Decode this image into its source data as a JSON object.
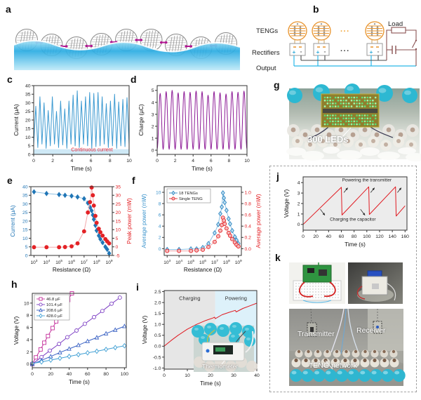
{
  "figure": {
    "panel_labels": {
      "a": "a",
      "b": "b",
      "c": "c",
      "d": "d",
      "e": "e",
      "f": "f",
      "g": "g",
      "h": "h",
      "i": "i",
      "j": "j",
      "k": "k"
    }
  },
  "panel_b": {
    "tengs_label": "TENGs",
    "rectifiers_label": "Rectifiers",
    "output_label": "Output",
    "load_label": "Load",
    "ellipsis": "...",
    "plus": "+",
    "minus": "-"
  },
  "panel_g": {
    "caption": "300 LEDs"
  },
  "panel_i": {
    "inset_caption": "Thermometer"
  },
  "panel_k": {
    "transmitter_label": "Transmitter",
    "receiver_label": "Receiver",
    "network_label": "TENG network"
  },
  "chart_data": [
    {
      "id": "c",
      "type": "line",
      "xlabel": "Time (s)",
      "ylabel": "Current (µA)",
      "xlim": [
        0,
        10
      ],
      "ylim": [
        0,
        40
      ],
      "xticks": [
        0,
        2,
        4,
        6,
        8,
        10
      ],
      "yticks": [
        0,
        5,
        10,
        15,
        20,
        25,
        30,
        35,
        40
      ],
      "line_color": "#3d9ad1",
      "band": {
        "y0": 0,
        "y1": 3,
        "color": "#cfe9f6"
      },
      "annotation": {
        "text": "Continuous current",
        "x": 6.1,
        "y": 1.9,
        "color": "#e8192c",
        "size": 7
      },
      "peaks": [
        28,
        33.5,
        30,
        25.5,
        33.5,
        25,
        31,
        26.5,
        31,
        34.5,
        37,
        31,
        33.5,
        36,
        35.5,
        36,
        33.5,
        29.5,
        31,
        35,
        30.5,
        32,
        33
      ],
      "valleys": [
        5.5,
        4,
        6,
        3.5,
        5,
        6,
        4,
        5.5,
        3.5,
        6,
        5,
        4,
        6,
        5,
        3.5,
        4.5,
        5,
        6,
        4,
        5,
        3.5,
        5,
        4.5
      ]
    },
    {
      "id": "d",
      "type": "line",
      "xlabel": "Time (s)",
      "ylabel": "Charge (µC)",
      "xlim": [
        0,
        10
      ],
      "ylim": [
        -0.35,
        5.4
      ],
      "xticks": [
        0,
        2,
        4,
        6,
        8,
        10
      ],
      "yticks": [
        0,
        1,
        2,
        3,
        4,
        5
      ],
      "line_color": "#8d1a96",
      "cycles": 15,
      "min_value": 0.07,
      "peak_values": [
        4.75,
        4.9,
        5.0,
        4.8,
        4.9,
        4.85,
        4.95,
        4.9,
        4.6,
        4.9,
        4.8,
        4.7,
        4.9,
        4.85,
        4.95
      ]
    },
    {
      "id": "e",
      "type": "dual-line",
      "xlabel": "Resistance (Ω)",
      "xscale": "log",
      "xlim_exp": [
        2.75,
        9.25
      ],
      "xticks_exp": [
        3,
        4,
        5,
        6,
        7,
        8,
        9
      ],
      "left": {
        "label": "Current (µA)",
        "color": "#2176b6",
        "lim": [
          0,
          40
        ],
        "ticks": [
          0,
          5,
          10,
          15,
          20,
          25,
          30,
          35,
          40
        ]
      },
      "right": {
        "label": "Peak power (mW)",
        "color": "#e32226",
        "lim": [
          -5,
          35
        ],
        "ticks": [
          -5,
          0,
          5,
          10,
          15,
          20,
          25,
          30,
          35
        ]
      },
      "series": [
        {
          "name": "Current",
          "axis": "left",
          "color": "#2176b6",
          "line": "#8fc1e4",
          "marker": "diamond",
          "mfill": "#2176b6",
          "data": [
            [
              1000,
              37
            ],
            [
              10000,
              36
            ],
            [
              100000,
              35.4
            ],
            [
              300000,
              35
            ],
            [
              1000000,
              34.6
            ],
            [
              3000000,
              34
            ],
            [
              10000000,
              33
            ],
            [
              20000000,
              30.5
            ],
            [
              30000000,
              28
            ],
            [
              40000000,
              26
            ],
            [
              50000000,
              23.5
            ],
            [
              60000000,
              21
            ],
            [
              80000000,
              17.5
            ],
            [
              100000000,
              14.5
            ],
            [
              150000000,
              11.5
            ],
            [
              200000000,
              9.5
            ],
            [
              300000000,
              7.5
            ],
            [
              500000000,
              5
            ],
            [
              700000000,
              3.5
            ],
            [
              1000000000,
              1.2
            ]
          ]
        },
        {
          "name": "Peak power",
          "axis": "right",
          "color": "#e32226",
          "line": "#f2a7a9",
          "marker": "circle",
          "mfill": "#e32226",
          "data": [
            [
              1000,
              -0.2
            ],
            [
              10000,
              -0.2
            ],
            [
              100000,
              -0.2
            ],
            [
              300000,
              -0.1
            ],
            [
              1000000,
              0.3
            ],
            [
              3000000,
              2
            ],
            [
              10000000,
              9
            ],
            [
              20000000,
              20
            ],
            [
              30000000,
              26
            ],
            [
              40000000,
              34.5
            ],
            [
              50000000,
              30
            ],
            [
              60000000,
              24
            ],
            [
              80000000,
              18
            ],
            [
              100000000,
              14
            ],
            [
              150000000,
              10.5
            ],
            [
              200000000,
              8.5
            ],
            [
              300000000,
              6.5
            ],
            [
              500000000,
              4.5
            ],
            [
              700000000,
              3.2
            ],
            [
              1000000000,
              2
            ]
          ]
        }
      ]
    },
    {
      "id": "f",
      "type": "dual-line",
      "xlabel": "Resistance (Ω)",
      "xscale": "log",
      "xlim_exp": [
        2.75,
        9.25
      ],
      "xticks_exp": [
        3,
        4,
        5,
        6,
        7,
        8,
        9
      ],
      "left": {
        "label": "Average power (mW)",
        "color": "#3a93cc",
        "lim": [
          -1.2,
          11
        ],
        "ticks": [
          0,
          2,
          4,
          6,
          8,
          10
        ]
      },
      "right": {
        "label": "Average power (mW)",
        "color": "#e32226",
        "lim": [
          -0.12,
          1.1
        ],
        "ticks": [
          "0.0",
          "0.2",
          "0.4",
          "0.6",
          "0.8",
          "1.0"
        ]
      },
      "series": [
        {
          "name": "18 TENGs",
          "axis": "left",
          "color": "#2e86c1",
          "line": "#8fc1e4",
          "marker": "diamond",
          "mfill": "#bfe0f2",
          "data": [
            [
              1000,
              -0.15
            ],
            [
              10000,
              -0.15
            ],
            [
              100000,
              -0.05
            ],
            [
              300000,
              -0.05
            ],
            [
              1000000,
              0.2
            ],
            [
              3000000,
              0.9
            ],
            [
              10000000,
              2.8
            ],
            [
              20000000,
              4.3
            ],
            [
              30000000,
              6.2
            ],
            [
              40000000,
              7.4
            ],
            [
              50000000,
              9.9
            ],
            [
              60000000,
              9.0
            ],
            [
              70000000,
              8.2
            ],
            [
              100000000,
              6.8
            ],
            [
              150000000,
              5.3
            ],
            [
              200000000,
              4.4
            ],
            [
              300000000,
              3.2
            ],
            [
              500000000,
              2.1
            ],
            [
              700000000,
              1.5
            ],
            [
              1000000000,
              0.9
            ]
          ]
        },
        {
          "name": "Single TENG",
          "axis": "right",
          "color": "#e32226",
          "line": "#f2a7a9",
          "marker": "circle",
          "mfill": "#f6b8ba",
          "data": [
            [
              1000,
              -0.04
            ],
            [
              10000,
              -0.04
            ],
            [
              100000,
              -0.04
            ],
            [
              300000,
              -0.03
            ],
            [
              1000000,
              -0.02
            ],
            [
              3000000,
              0.03
            ],
            [
              10000000,
              0.12
            ],
            [
              20000000,
              0.22
            ],
            [
              30000000,
              0.32
            ],
            [
              40000000,
              0.42
            ],
            [
              50000000,
              0.55
            ],
            [
              60000000,
              0.5
            ],
            [
              70000000,
              0.44
            ],
            [
              100000000,
              0.36
            ],
            [
              150000000,
              0.28
            ],
            [
              200000000,
              0.23
            ],
            [
              300000000,
              0.17
            ],
            [
              500000000,
              0.11
            ],
            [
              700000000,
              0.07
            ],
            [
              1000000000,
              0.04
            ]
          ]
        }
      ]
    },
    {
      "id": "h",
      "type": "line",
      "xlabel": "Time (s)",
      "ylabel": "Voltage (V)",
      "xlim": [
        0,
        102
      ],
      "ylim": [
        -0.6,
        11.6
      ],
      "xticks": [
        0,
        20,
        40,
        60,
        80,
        100
      ],
      "yticks": [
        0,
        2,
        4,
        6,
        8,
        10
      ],
      "series": [
        {
          "name": "46.8 µF",
          "color": "#c4309c",
          "marker": "square",
          "mfill": "#fff",
          "data": [
            [
              0,
              0
            ],
            [
              4,
              1.1
            ],
            [
              9,
              2.4
            ],
            [
              13,
              3.5
            ],
            [
              17,
              4.6
            ],
            [
              22,
              5.9
            ],
            [
              26,
              7.0
            ],
            [
              30,
              8.1
            ],
            [
              35,
              9.5
            ],
            [
              39,
              10.5
            ],
            [
              43,
              11.6
            ]
          ]
        },
        {
          "name": "101.4 µF",
          "color": "#7d3fc4",
          "marker": "circle",
          "mfill": "#fff",
          "data": [
            [
              0,
              0
            ],
            [
              10,
              1.15
            ],
            [
              19,
              2.2
            ],
            [
              29,
              3.3
            ],
            [
              38,
              4.4
            ],
            [
              48,
              5.5
            ],
            [
              57,
              6.6
            ],
            [
              67,
              7.7
            ],
            [
              76,
              8.7
            ],
            [
              86,
              9.9
            ],
            [
              95,
              10.9
            ]
          ]
        },
        {
          "name": "208.6 µF",
          "color": "#3a62c4",
          "marker": "triangle",
          "mfill": "#fff",
          "data": [
            [
              0,
              0
            ],
            [
              10,
              0.6
            ],
            [
              20,
              1.25
            ],
            [
              30,
              1.9
            ],
            [
              40,
              2.5
            ],
            [
              50,
              3.1
            ],
            [
              60,
              3.75
            ],
            [
              70,
              4.35
            ],
            [
              80,
              5.0
            ],
            [
              90,
              5.6
            ],
            [
              100,
              6.2
            ]
          ]
        },
        {
          "name": "428.0 µF",
          "color": "#41a0d4",
          "marker": "diamond",
          "mfill": "#fff",
          "data": [
            [
              0,
              0.1
            ],
            [
              10,
              0.35
            ],
            [
              20,
              0.65
            ],
            [
              30,
              0.95
            ],
            [
              40,
              1.25
            ],
            [
              50,
              1.55
            ],
            [
              60,
              1.85
            ],
            [
              70,
              2.1
            ],
            [
              80,
              2.4
            ],
            [
              90,
              2.7
            ],
            [
              100,
              3.0
            ]
          ]
        }
      ]
    },
    {
      "id": "i",
      "type": "line",
      "xlabel": "Time (s)",
      "ylabel": "Voltage (V)",
      "xlim": [
        0,
        40
      ],
      "ylim": [
        -1.05,
        2.55
      ],
      "xticks": [
        0,
        10,
        20,
        30,
        40
      ],
      "yticks": [
        "-1.0",
        "-0.5",
        "0.0",
        "0.5",
        "1.0",
        "1.5",
        "2.0",
        "2.5"
      ],
      "regions": [
        {
          "x0": 0,
          "x1": 22,
          "color": "#e6e6e6",
          "label": "Charging",
          "label_y": 2.12
        },
        {
          "x0": 22,
          "x1": 40,
          "color": "#ddf1fa",
          "label": "Powering",
          "label_y": 2.12
        }
      ],
      "series": [
        {
          "color": "#e01920",
          "data": [
            [
              0,
              0
            ],
            [
              3,
              0.26
            ],
            [
              6,
              0.5
            ],
            [
              10,
              0.78
            ],
            [
              14,
              1.0
            ],
            [
              18,
              1.18
            ],
            [
              21,
              1.29
            ],
            [
              21.8,
              1.33
            ],
            [
              22.1,
              1.26
            ],
            [
              25,
              1.44
            ],
            [
              28,
              1.55
            ],
            [
              30.7,
              1.64
            ],
            [
              31.1,
              1.57
            ],
            [
              34,
              1.73
            ],
            [
              37,
              1.85
            ],
            [
              40,
              1.97
            ]
          ]
        }
      ]
    },
    {
      "id": "j",
      "type": "line",
      "xlabel": "Time (s)",
      "ylabel": "Voltage (V)",
      "xlim": [
        0,
        163
      ],
      "ylim": [
        -0.55,
        4.55
      ],
      "xticks": [
        0,
        20,
        40,
        60,
        80,
        100,
        120,
        140,
        160
      ],
      "yticks": [
        0,
        1,
        2,
        3,
        4
      ],
      "bg": "#ececec",
      "series": [
        {
          "color": "#e01920",
          "data": [
            [
              0,
              0
            ],
            [
              60,
              3.55
            ],
            [
              61,
              0.9
            ],
            [
              103,
              3.6
            ],
            [
              104,
              0.95
            ],
            [
              145,
              3.6
            ],
            [
              146,
              0.8
            ],
            [
              160,
              1.78
            ]
          ]
        }
      ],
      "annotations": [
        {
          "text": "Powering the transmitter",
          "x": 100,
          "y": 4.12,
          "color": "#222",
          "size": 6.5
        },
        {
          "text": "Charging the capacitor",
          "x": 78,
          "y": 0.35,
          "color": "#222",
          "size": 6.5
        }
      ],
      "arrows": [
        [
          64,
          3.05,
          70,
          3.5
        ],
        [
          106,
          3.05,
          112,
          3.5
        ],
        [
          148,
          3.05,
          154,
          3.5
        ],
        [
          27,
          1.45,
          34,
          0.88
        ],
        [
          90,
          1.45,
          97,
          0.88
        ]
      ]
    }
  ]
}
